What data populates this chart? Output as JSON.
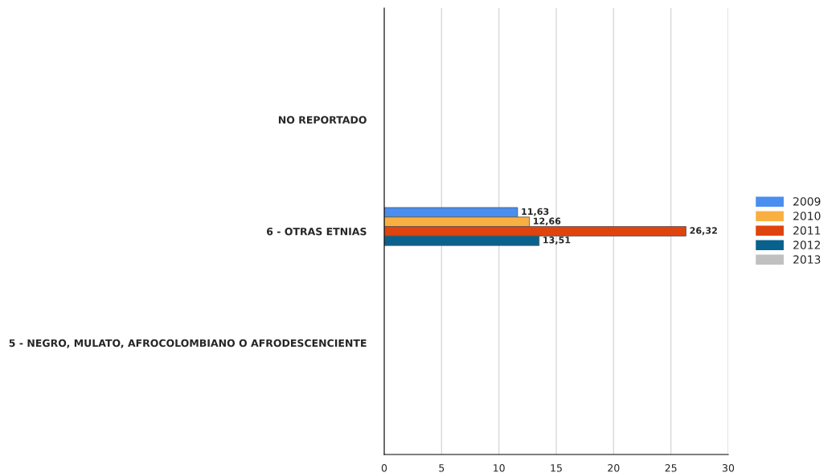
{
  "chart_data": {
    "type": "bar",
    "orientation": "horizontal",
    "categories": [
      "NO REPORTADO",
      "6 - OTRAS ETNIAS",
      "5 - NEGRO, MULATO, AFROCOLOMBIANO O AFRODESCENCIENTE"
    ],
    "series": [
      {
        "name": "2009",
        "color": "#4a8ef0",
        "values": [
          null,
          11.63,
          null
        ],
        "value_labels": [
          null,
          "11,63",
          null
        ]
      },
      {
        "name": "2010",
        "color": "#f9b042",
        "values": [
          null,
          12.66,
          null
        ],
        "value_labels": [
          null,
          "12,66",
          null
        ]
      },
      {
        "name": "2011",
        "color": "#e0440e",
        "values": [
          null,
          26.32,
          null
        ],
        "value_labels": [
          null,
          "26,32",
          null
        ]
      },
      {
        "name": "2012",
        "color": "#09628e",
        "values": [
          null,
          13.51,
          null
        ],
        "value_labels": [
          null,
          "13,51",
          null
        ]
      },
      {
        "name": "2013",
        "color": "#c0c0c0",
        "values": [
          null,
          null,
          null
        ],
        "value_labels": [
          null,
          null,
          null
        ]
      }
    ],
    "xlim": [
      0,
      30
    ],
    "xticks": [
      0,
      5,
      10,
      15,
      20,
      25,
      30
    ],
    "grid": "x",
    "legend": "right"
  }
}
